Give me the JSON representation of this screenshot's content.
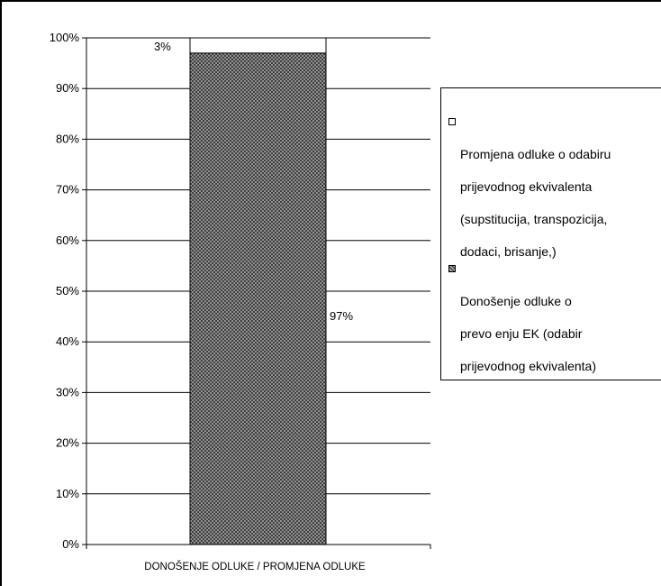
{
  "chart_data": {
    "type": "bar",
    "stacked": true,
    "categories": [
      "DONOŠENJE ODLUKE / PROMJENA ODLUKE"
    ],
    "series": [
      {
        "name": "Donošenje odluke o prevo enju EK (odabir prijevodnog ekvivalenta)",
        "values": [
          97
        ],
        "data_label": "97%",
        "fill": "crosshatch-gray",
        "color": "#808080"
      },
      {
        "name": "Promjena odluke o odabiru prijevodnog ekvivalenta (supstitucija, transpozicija, dodaci, brisanje,)",
        "values": [
          3
        ],
        "data_label": "3%",
        "fill": "white",
        "color": "#ffffff"
      }
    ],
    "ylim": [
      0,
      100
    ],
    "yticks": [
      "0%",
      "10%",
      "20%",
      "30%",
      "40%",
      "50%",
      "60%",
      "70%",
      "80%",
      "90%",
      "100%"
    ],
    "grid": true,
    "legend_position": "right",
    "xlabel": "",
    "ylabel": ""
  },
  "legend": {
    "entries": [
      {
        "lines": [
          "Promjena odluke o odabiru",
          "prijevodnog ekvivalenta",
          "(supstitucija, transpozicija,",
          "dodaci, brisanje,)"
        ]
      },
      {
        "lines": [
          "Donošenje odluke o",
          "prevo enju EK  (odabir",
          "prijevodnog ekvivalenta)"
        ]
      }
    ]
  }
}
